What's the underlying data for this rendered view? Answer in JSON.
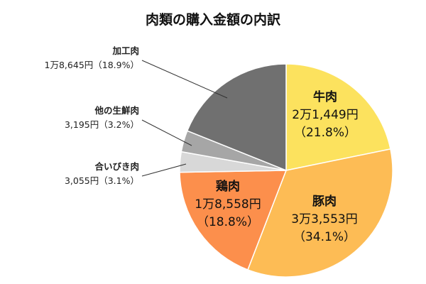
{
  "chart_data": {
    "type": "pie",
    "title": "肉類の購入金額の内訳",
    "start": "top",
    "direction": "clockwise",
    "slices": [
      {
        "name": "牛肉",
        "value": 21449,
        "value_label": "2万1,449円",
        "percent": 21.8,
        "percent_label": "（21.8%）",
        "color": "#FCE25E",
        "label_position": "inside"
      },
      {
        "name": "豚肉",
        "value": 33553,
        "value_label": "3万3,553円",
        "percent": 34.1,
        "percent_label": "（34.1%）",
        "color": "#FDBC55",
        "label_position": "inside"
      },
      {
        "name": "鶏肉",
        "value": 18558,
        "value_label": "1万8,558円",
        "percent": 18.8,
        "percent_label": "（18.8%）",
        "color": "#FC8F4C",
        "label_position": "inside"
      },
      {
        "name": "合いびき肉",
        "value": 3055,
        "value_label": "3,055円",
        "percent": 3.1,
        "percent_label": "（3.1%）",
        "color": "#D8D8D8",
        "label_position": "outside"
      },
      {
        "name": "他の生鮮肉",
        "value": 3195,
        "value_label": "3,195円",
        "percent": 3.2,
        "percent_label": "（3.2%）",
        "color": "#A6A6A6",
        "label_position": "outside"
      },
      {
        "name": "加工肉",
        "value": 18645,
        "value_label": "1万8,645円",
        "percent": 18.9,
        "percent_label": "（18.9%）",
        "color": "#707070",
        "label_position": "outside"
      }
    ]
  }
}
